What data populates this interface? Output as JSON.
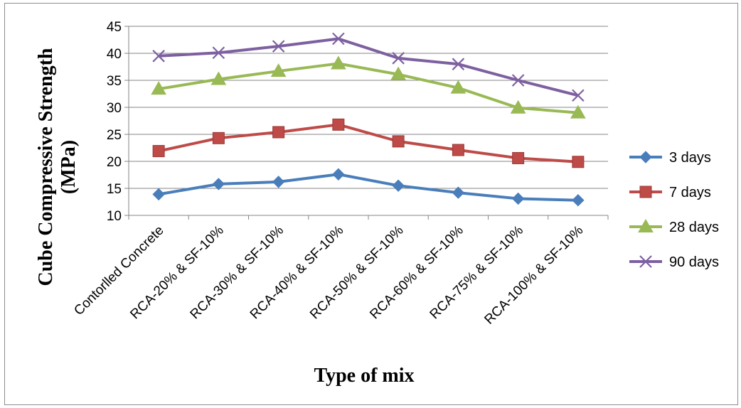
{
  "chart_data": {
    "type": "line",
    "title": "",
    "xlabel": "Type of mix",
    "ylabel_line1": "Cube Compressive Strength",
    "ylabel_line2": "(MPa)",
    "ylim": [
      10,
      45
    ],
    "yticks": [
      10,
      15,
      20,
      25,
      30,
      35,
      40,
      45
    ],
    "grid": "horizontal",
    "legend_position": "right",
    "categories": [
      "Contorlled Concrete",
      "RCA-20% & SF-10%",
      "RCA-30% & SF-10%",
      "RCA-40% & SF-10%",
      "RCA-50% & SF-10%",
      "RCA-60% & SF-10%",
      "RCA-75% & SF-10%",
      "RCA-100% & SF-10%"
    ],
    "series": [
      {
        "name": "3 days",
        "color": "#4a7ebb",
        "marker": "diamond",
        "values": [
          13.9,
          15.8,
          16.2,
          17.6,
          15.5,
          14.2,
          13.1,
          12.8
        ]
      },
      {
        "name": "7 days",
        "color": "#be4b48",
        "marker": "square",
        "values": [
          21.9,
          24.3,
          25.4,
          26.8,
          23.7,
          22.1,
          20.6,
          19.9
        ]
      },
      {
        "name": "28 days",
        "color": "#98b954",
        "marker": "triangle",
        "values": [
          33.4,
          35.2,
          36.7,
          38.1,
          36.1,
          33.6,
          29.9,
          29.0
        ]
      },
      {
        "name": "90 days",
        "color": "#7d60a0",
        "marker": "x",
        "values": [
          39.5,
          40.1,
          41.3,
          42.7,
          39.1,
          38.0,
          35.0,
          32.2
        ]
      }
    ]
  }
}
